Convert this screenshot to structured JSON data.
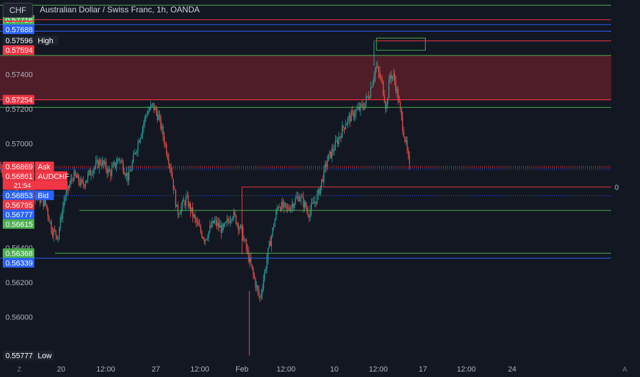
{
  "header": {
    "symbol_button": "CHF",
    "title": "Australian Dollar / Swiss Franc, 1h, OANDA"
  },
  "colors": {
    "background": "#131722",
    "green": "#4caf50",
    "red": "#f23645",
    "blue": "#2962ff",
    "candle_up": "#26a69a",
    "candle_down": "#ef5350",
    "zone_fill": "#5a1f28",
    "text": "#d1d4dc",
    "axis_text": "#b2b5be"
  },
  "chart_data": {
    "type": "candlestick",
    "title": "Australian Dollar / Swiss Franc, 1h, OANDA",
    "ylim": [
      0.5574,
      0.5783
    ],
    "y_ticks": [
      {
        "value": 0.56,
        "label": "0.56000"
      },
      {
        "value": 0.562,
        "label": "0.56200"
      },
      {
        "value": 0.564,
        "label": "0.56400"
      },
      {
        "value": 0.57,
        "label": "0.57000"
      },
      {
        "value": 0.572,
        "label": "0.57200"
      },
      {
        "value": 0.574,
        "label": "0.57400"
      }
    ],
    "x_ticks": [
      {
        "label": "20",
        "t": 0.1
      },
      {
        "label": "12:00",
        "t": 0.173
      },
      {
        "label": "27",
        "t": 0.255
      },
      {
        "label": "12:00",
        "t": 0.327
      },
      {
        "label": "Feb",
        "t": 0.396
      },
      {
        "label": "12:00",
        "t": 0.468
      },
      {
        "label": "10",
        "t": 0.547
      },
      {
        "label": "12:00",
        "t": 0.619
      },
      {
        "label": "17",
        "t": 0.692
      },
      {
        "label": "12:00",
        "t": 0.763
      },
      {
        "label": "24",
        "t": 0.838
      }
    ],
    "price_tags": [
      {
        "label": "0.57716",
        "value": 0.57716,
        "color": "green"
      },
      {
        "label": "0.57688",
        "value": 0.57688,
        "color": "blue"
      },
      {
        "label": "0.57596",
        "value": 0.57596,
        "color": "dark",
        "tag": "High"
      },
      {
        "label": "0.57594",
        "value": 0.57594,
        "color": "red"
      },
      {
        "label": "0.57254",
        "value": 0.57254,
        "color": "red"
      },
      {
        "label": "0.56869",
        "value": 0.56869,
        "color": "red",
        "tag": "Ask"
      },
      {
        "label": "0.56861",
        "value": 0.56861,
        "color": "red",
        "tag": "AUDCHF",
        "sub": "21:54"
      },
      {
        "label": "0.56853",
        "value": 0.56853,
        "color": "blue",
        "tag": "Bid"
      },
      {
        "label": "0.56795",
        "value": 0.56795,
        "color": "red"
      },
      {
        "label": "0.56777",
        "value": 0.56777,
        "color": "blue"
      },
      {
        "label": "0.56615",
        "value": 0.56615,
        "color": "green"
      },
      {
        "label": "0.56368",
        "value": 0.56368,
        "color": "green"
      },
      {
        "label": "0.56339",
        "value": 0.56339,
        "color": "blue"
      },
      {
        "label": "0.55777",
        "value": 0.55777,
        "color": "dark",
        "tag": "Low"
      }
    ],
    "horizontal_lines": [
      {
        "value": 0.578,
        "color": "green",
        "from": 0.0
      },
      {
        "value": 0.57716,
        "color": "red",
        "from": 0.0
      },
      {
        "value": 0.57688,
        "color": "blue",
        "from": 0.0
      },
      {
        "value": 0.5765,
        "color": "blue",
        "from": 0.0
      },
      {
        "value": 0.57594,
        "color": "red",
        "from": 0.614
      },
      {
        "value": 0.57254,
        "color": "red",
        "from": 0.0
      },
      {
        "value": 0.5721,
        "color": "green",
        "from": 0.0
      },
      {
        "value": 0.56615,
        "color": "green",
        "from": 0.13
      },
      {
        "value": 0.56368,
        "color": "green",
        "from": 0.09
      },
      {
        "value": 0.56339,
        "color": "blue",
        "from": 0.0
      }
    ],
    "zone": {
      "top": 0.5751,
      "bottom": 0.5725,
      "from": 0.0
    },
    "small_box": {
      "top": 0.5761,
      "bottom": 0.5754,
      "from": 0.616,
      "to": 0.696
    },
    "right_label": "0",
    "right_label_value": 0.5675,
    "axis_icons": [
      "Z",
      "A"
    ],
    "series_candles": 360,
    "series_path": [
      [
        0.0,
        0.5688
      ],
      [
        0.02,
        0.5673
      ],
      [
        0.04,
        0.5676
      ],
      [
        0.06,
        0.567
      ],
      [
        0.075,
        0.5665
      ],
      [
        0.085,
        0.565
      ],
      [
        0.095,
        0.5647
      ],
      [
        0.105,
        0.5668
      ],
      [
        0.12,
        0.5682
      ],
      [
        0.135,
        0.5676
      ],
      [
        0.15,
        0.5685
      ],
      [
        0.165,
        0.569
      ],
      [
        0.18,
        0.5683
      ],
      [
        0.195,
        0.5692
      ],
      [
        0.21,
        0.568
      ],
      [
        0.225,
        0.57
      ],
      [
        0.24,
        0.5718
      ],
      [
        0.25,
        0.5722
      ],
      [
        0.26,
        0.5715
      ],
      [
        0.27,
        0.57
      ],
      [
        0.28,
        0.5685
      ],
      [
        0.29,
        0.566
      ],
      [
        0.305,
        0.5668
      ],
      [
        0.32,
        0.5655
      ],
      [
        0.335,
        0.5645
      ],
      [
        0.35,
        0.5655
      ],
      [
        0.365,
        0.565
      ],
      [
        0.38,
        0.566
      ],
      [
        0.395,
        0.565
      ],
      [
        0.41,
        0.563
      ],
      [
        0.425,
        0.561
      ],
      [
        0.44,
        0.564
      ],
      [
        0.455,
        0.5665
      ],
      [
        0.47,
        0.5662
      ],
      [
        0.49,
        0.567
      ],
      [
        0.505,
        0.566
      ],
      [
        0.52,
        0.567
      ],
      [
        0.535,
        0.569
      ],
      [
        0.55,
        0.57
      ],
      [
        0.565,
        0.5712
      ],
      [
        0.58,
        0.5718
      ],
      [
        0.595,
        0.5722
      ],
      [
        0.605,
        0.573
      ],
      [
        0.615,
        0.5745
      ],
      [
        0.625,
        0.5735
      ],
      [
        0.632,
        0.572
      ],
      [
        0.638,
        0.574
      ],
      [
        0.645,
        0.5738
      ],
      [
        0.652,
        0.5725
      ],
      [
        0.658,
        0.5712
      ],
      [
        0.664,
        0.57
      ],
      [
        0.67,
        0.5686
      ]
    ]
  }
}
